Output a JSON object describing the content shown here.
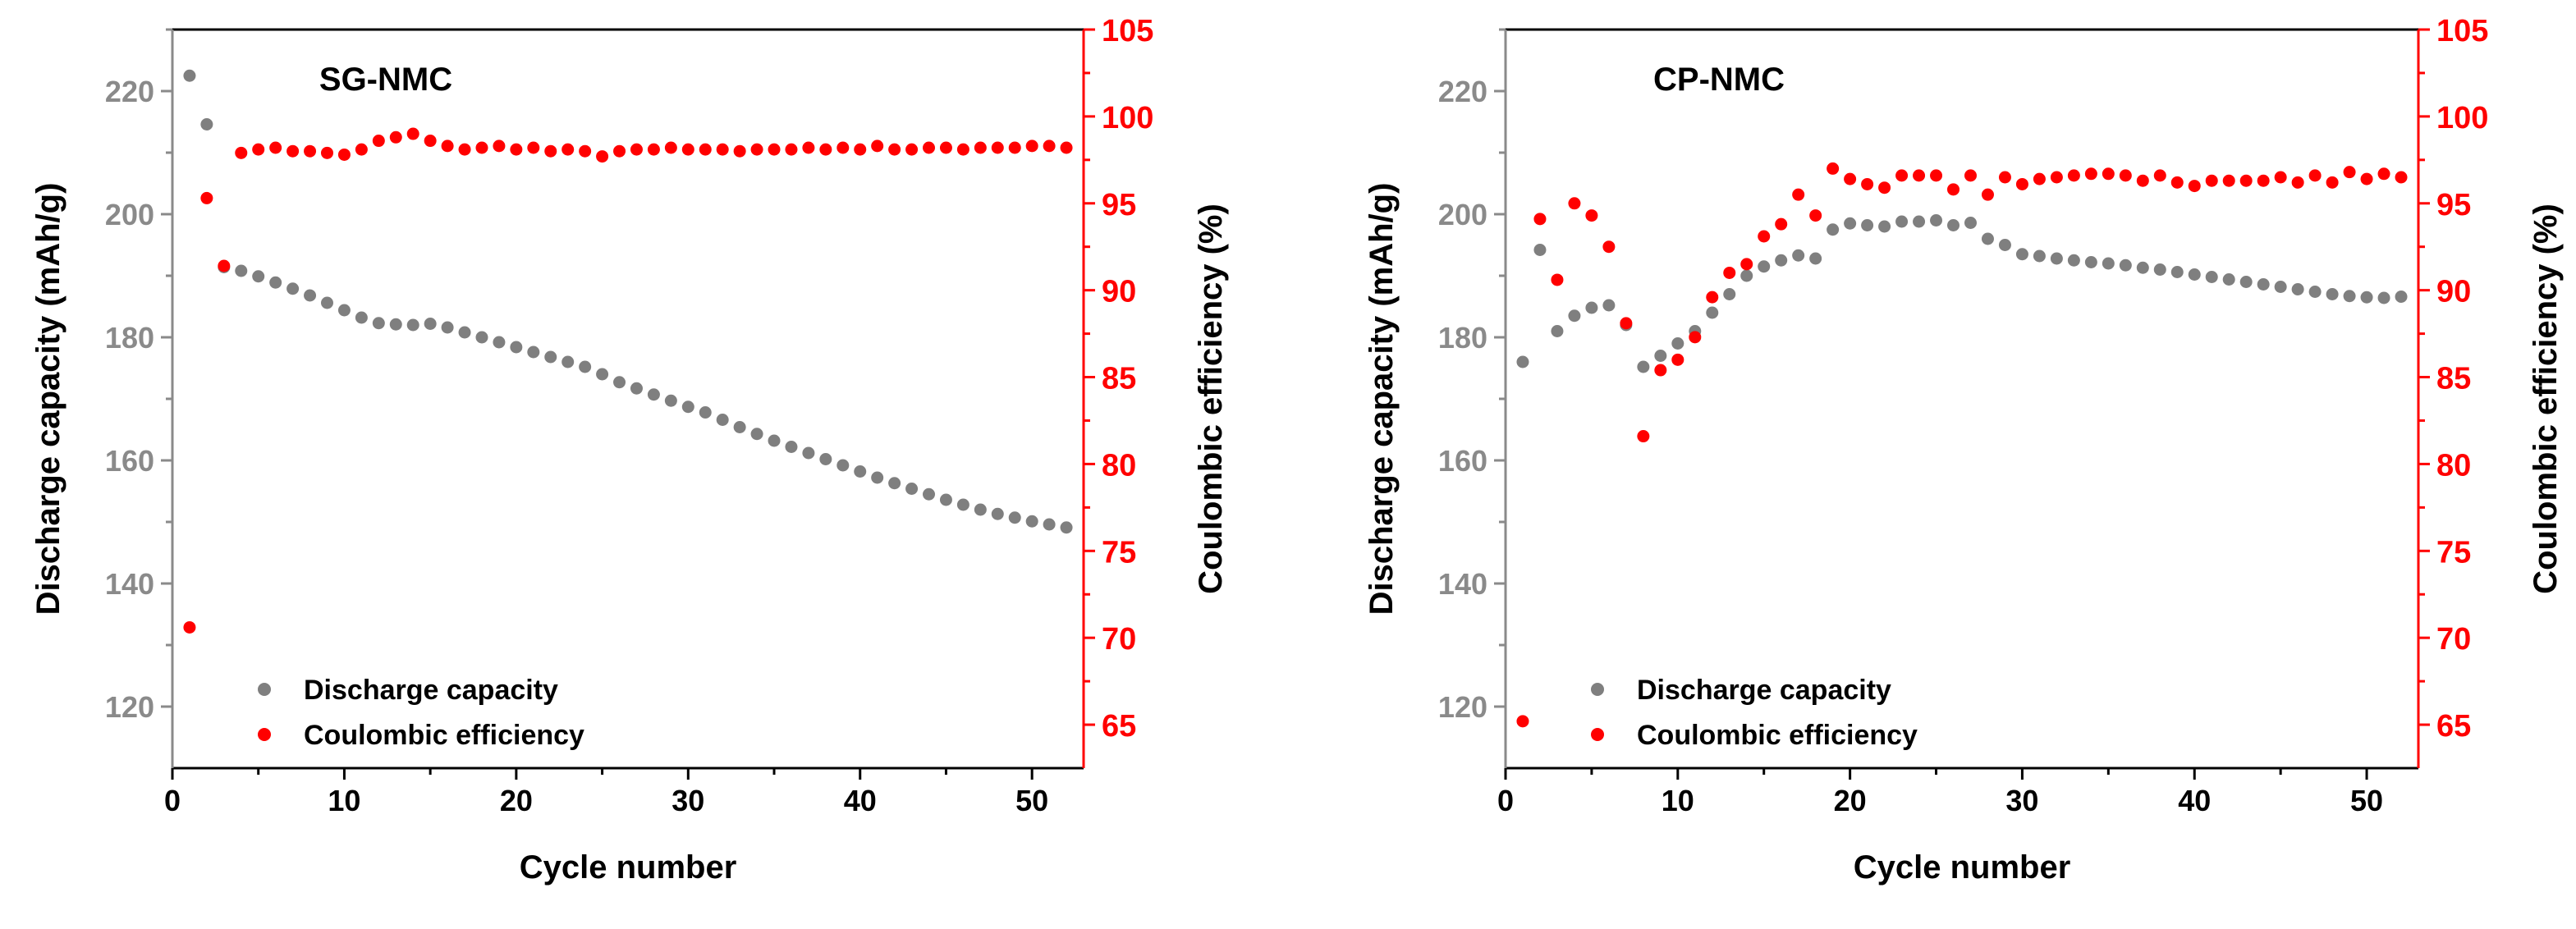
{
  "chart_data": [
    {
      "type": "scatter",
      "title": "SG-NMC",
      "xlabel": "Cycle number",
      "ylabel": "Discharge capacity (mAh/g)",
      "y2label": "Coulombic efficiency (%)",
      "xlim": [
        0,
        53
      ],
      "ylim": [
        110,
        230
      ],
      "y2lim": [
        62.5,
        105
      ],
      "xticks": [
        0,
        10,
        20,
        30,
        40,
        50
      ],
      "yticks": [
        120,
        140,
        160,
        180,
        200,
        220
      ],
      "y2ticks": [
        65,
        70,
        75,
        80,
        85,
        90,
        95,
        100,
        105
      ],
      "legend_position": "bottom-left",
      "series": [
        {
          "name": "Discharge capacity",
          "axis": "left",
          "color": "#7f7f7f",
          "x": [
            1,
            2,
            3,
            4,
            5,
            6,
            7,
            8,
            9,
            10,
            11,
            12,
            13,
            14,
            15,
            16,
            17,
            18,
            19,
            20,
            21,
            22,
            23,
            24,
            25,
            26,
            27,
            28,
            29,
            30,
            31,
            32,
            33,
            34,
            35,
            36,
            37,
            38,
            39,
            40,
            41,
            42,
            43,
            44,
            45,
            46,
            47,
            48,
            49,
            50,
            51,
            52
          ],
          "values": [
            222.5,
            214.6,
            191.4,
            190.8,
            189.9,
            188.9,
            187.9,
            186.8,
            185.6,
            184.4,
            183.2,
            182.3,
            182.1,
            182.0,
            182.2,
            181.6,
            180.8,
            180.0,
            179.2,
            178.4,
            177.6,
            176.8,
            176.0,
            175.2,
            174.0,
            172.7,
            171.7,
            170.7,
            169.7,
            168.7,
            167.8,
            166.6,
            165.4,
            164.3,
            163.2,
            162.2,
            161.2,
            160.2,
            159.2,
            158.2,
            157.2,
            156.3,
            155.4,
            154.5,
            153.6,
            152.8,
            152.0,
            151.3,
            150.7,
            150.1,
            149.6,
            149.1
          ]
        },
        {
          "name": "Coulombic efficiency",
          "axis": "right",
          "color": "#ff0000",
          "x": [
            1,
            2,
            3,
            4,
            5,
            6,
            7,
            8,
            9,
            10,
            11,
            12,
            13,
            14,
            15,
            16,
            17,
            18,
            19,
            20,
            21,
            22,
            23,
            24,
            25,
            26,
            27,
            28,
            29,
            30,
            31,
            32,
            33,
            34,
            35,
            36,
            37,
            38,
            39,
            40,
            41,
            42,
            43,
            44,
            45,
            46,
            47,
            48,
            49,
            50,
            51,
            52
          ],
          "values": [
            70.6,
            95.3,
            91.4,
            97.9,
            98.1,
            98.2,
            98.0,
            98.0,
            97.9,
            97.8,
            98.1,
            98.6,
            98.8,
            99.0,
            98.6,
            98.3,
            98.1,
            98.2,
            98.3,
            98.1,
            98.2,
            98.0,
            98.1,
            98.0,
            97.7,
            98.0,
            98.1,
            98.1,
            98.2,
            98.1,
            98.1,
            98.1,
            98.0,
            98.1,
            98.1,
            98.1,
            98.2,
            98.1,
            98.2,
            98.1,
            98.3,
            98.1,
            98.1,
            98.2,
            98.2,
            98.1,
            98.2,
            98.2,
            98.2,
            98.3,
            98.3,
            98.2
          ]
        }
      ]
    },
    {
      "type": "scatter",
      "title": "CP-NMC",
      "xlabel": "Cycle number",
      "ylabel": "Discharge capacity (mAh/g)",
      "y2label": "Coulombic efficiency (%)",
      "xlim": [
        0,
        53
      ],
      "ylim": [
        110,
        230
      ],
      "y2lim": [
        62.5,
        105
      ],
      "xticks": [
        0,
        10,
        20,
        30,
        40,
        50
      ],
      "yticks": [
        120,
        140,
        160,
        180,
        200,
        220
      ],
      "y2ticks": [
        65,
        70,
        75,
        80,
        85,
        90,
        95,
        100,
        105
      ],
      "legend_position": "bottom-left",
      "series": [
        {
          "name": "Discharge capacity",
          "axis": "left",
          "color": "#7f7f7f",
          "x": [
            1,
            2,
            3,
            4,
            5,
            6,
            7,
            8,
            9,
            10,
            11,
            12,
            13,
            14,
            15,
            16,
            17,
            18,
            19,
            20,
            21,
            22,
            23,
            24,
            25,
            26,
            27,
            28,
            29,
            30,
            31,
            32,
            33,
            34,
            35,
            36,
            37,
            38,
            39,
            40,
            41,
            42,
            43,
            44,
            45,
            46,
            47,
            48,
            49,
            50,
            51,
            52
          ],
          "values": [
            176.0,
            194.2,
            181.0,
            183.5,
            184.8,
            185.2,
            182.0,
            175.2,
            177.0,
            179.0,
            181.0,
            184.0,
            187.0,
            190.0,
            191.5,
            192.5,
            193.3,
            192.8,
            197.5,
            198.5,
            198.2,
            198.0,
            198.8,
            198.8,
            199.0,
            198.2,
            198.6,
            196.0,
            195.0,
            193.5,
            193.2,
            192.8,
            192.5,
            192.2,
            192.0,
            191.7,
            191.3,
            191.0,
            190.6,
            190.2,
            189.8,
            189.4,
            189.0,
            188.6,
            188.2,
            187.8,
            187.4,
            187.0,
            186.7,
            186.5,
            186.4,
            186.6
          ]
        },
        {
          "name": "Coulombic efficiency",
          "axis": "right",
          "color": "#ff0000",
          "x": [
            1,
            2,
            3,
            4,
            5,
            6,
            7,
            8,
            9,
            10,
            11,
            12,
            13,
            14,
            15,
            16,
            17,
            18,
            19,
            20,
            21,
            22,
            23,
            24,
            25,
            26,
            27,
            28,
            29,
            30,
            31,
            32,
            33,
            34,
            35,
            36,
            37,
            38,
            39,
            40,
            41,
            42,
            43,
            44,
            45,
            46,
            47,
            48,
            49,
            50,
            51,
            52
          ],
          "values": [
            65.2,
            94.1,
            90.6,
            95.0,
            94.3,
            92.5,
            88.1,
            81.6,
            85.4,
            86.0,
            87.3,
            89.6,
            91.0,
            91.5,
            93.1,
            93.8,
            95.5,
            94.3,
            97.0,
            96.4,
            96.1,
            95.9,
            96.6,
            96.6,
            96.6,
            95.8,
            96.6,
            95.5,
            96.5,
            96.1,
            96.4,
            96.5,
            96.6,
            96.7,
            96.7,
            96.6,
            96.3,
            96.6,
            96.2,
            96.0,
            96.3,
            96.3,
            96.3,
            96.3,
            96.5,
            96.2,
            96.6,
            96.2,
            96.8,
            96.4,
            96.7,
            96.5
          ]
        }
      ]
    }
  ]
}
